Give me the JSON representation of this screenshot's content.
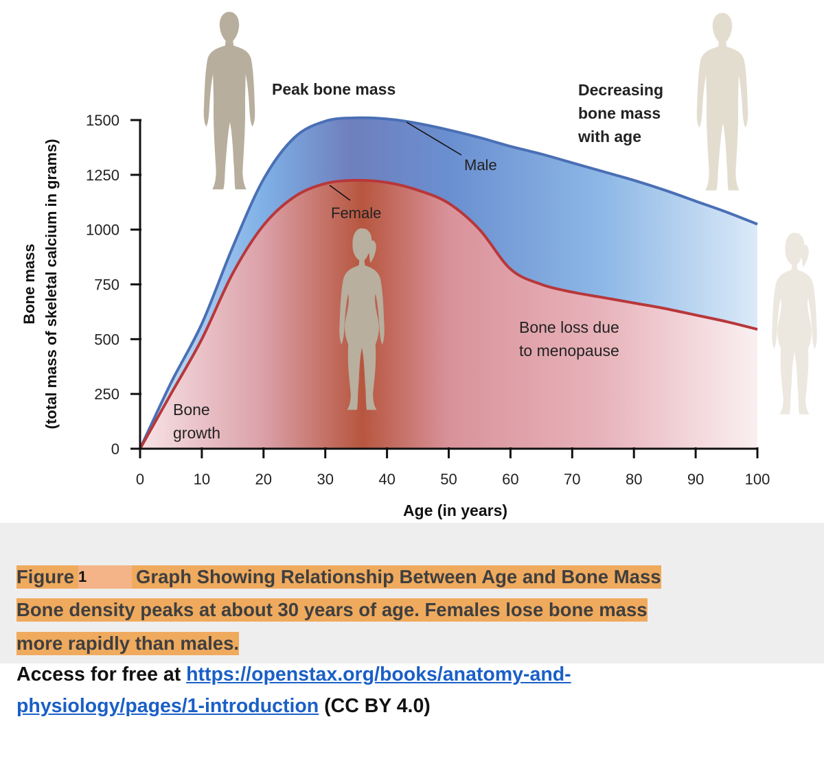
{
  "chart_data": {
    "type": "area",
    "title": "",
    "xlabel": "Age (in years)",
    "ylabel_line1": "Bone mass",
    "ylabel_line2": "(total mass of skeletal calcium in grams)",
    "xlim": [
      0,
      100
    ],
    "ylim": [
      0,
      1500
    ],
    "x_ticks": [
      0,
      10,
      20,
      30,
      40,
      50,
      60,
      70,
      80,
      90,
      100
    ],
    "y_ticks": [
      0,
      250,
      500,
      750,
      1000,
      1250,
      1500
    ],
    "grid": false,
    "series": [
      {
        "name": "Male",
        "color": "#4a6fb5",
        "x": [
          0,
          5,
          10,
          15,
          20,
          25,
          30,
          35,
          40,
          45,
          50,
          55,
          60,
          65,
          70,
          75,
          80,
          85,
          90,
          95,
          100
        ],
        "y": [
          0,
          300,
          570,
          920,
          1230,
          1420,
          1495,
          1510,
          1505,
          1485,
          1455,
          1420,
          1380,
          1345,
          1305,
          1265,
          1225,
          1180,
          1130,
          1080,
          1025
        ]
      },
      {
        "name": "Female",
        "color": "#b8373a",
        "x": [
          0,
          5,
          10,
          15,
          20,
          25,
          30,
          35,
          40,
          45,
          50,
          55,
          60,
          65,
          70,
          75,
          80,
          85,
          90,
          95,
          100
        ],
        "y": [
          0,
          250,
          500,
          800,
          1020,
          1150,
          1210,
          1225,
          1215,
          1180,
          1120,
          1000,
          820,
          750,
          715,
          690,
          665,
          640,
          610,
          580,
          545
        ]
      }
    ],
    "annotations": {
      "peak": "Peak bone mass",
      "decreasing_line1": "Decreasing",
      "decreasing_line2": "bone mass",
      "decreasing_line3": "with age",
      "male": "Male",
      "female": "Female",
      "menopause_line1": "Bone loss due",
      "menopause_line2": "to menopause",
      "growth_line1": "Bone",
      "growth_line2": "growth"
    }
  },
  "caption": {
    "figure_word": "Figure",
    "figure_number": "1",
    "title": "Graph Showing Relationship Between Age and Bone Mass",
    "line2": "Bone density peaks at about 30 years of age. Females lose bone mass",
    "line3": "more rapidly than males."
  },
  "access": {
    "prefix": "Access for free at ",
    "link_line1": "https://openstax.org/books/anatomy-and-",
    "link_line2": "physiology/pages/1-introduction",
    "license": " (CC BY 4.0)"
  },
  "colors": {
    "male_fill": "#7fa5da",
    "female_fill": "#d98a92",
    "figure_silhouette": "#b9b09f",
    "caption_highlight": "#efaa5e"
  }
}
